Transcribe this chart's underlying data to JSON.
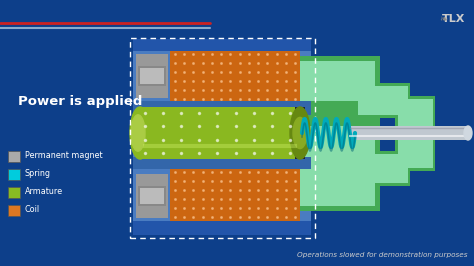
{
  "background_color": "#0d3f8a",
  "power_text": "Power is applied",
  "power_text_color": "#ffffff",
  "tlx_text": "TLX",
  "tlx_color": "#cccccc",
  "bottom_note": "Operations slowed for demonstration purposes",
  "bottom_note_color": "#cccccc",
  "legend_items": [
    {
      "label": "Permanent magnet",
      "color": "#aaaaaa"
    },
    {
      "label": "Spring",
      "color": "#00ccdd"
    },
    {
      "label": "Armature",
      "color": "#88bb22"
    },
    {
      "label": "Coil",
      "color": "#dd7722"
    }
  ],
  "coil_color": "#cc6611",
  "armature_color": "#8ab820",
  "spring_color": "#00aabb",
  "magnet_color": "#999999",
  "body_color_dark": "#44aa55",
  "body_color_light": "#88ddaa",
  "shaft_color": "#c0c8d0",
  "wire_color_red": "#cc2222",
  "wire_color_blue": "#4499cc",
  "inner_box_color": "#4477bb",
  "inner_box_color2": "#5588cc"
}
